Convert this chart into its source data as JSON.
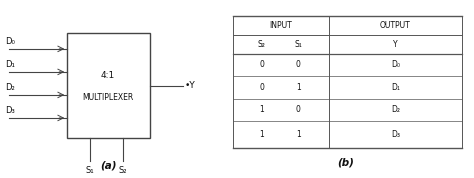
{
  "bg_color": "#ffffff",
  "mux_label_line1": "4:1",
  "mux_label_line2": "MULTIPLEXER",
  "inputs": [
    "D₀",
    "D₁",
    "D₂",
    "D₃"
  ],
  "sel_labels": [
    "S₁",
    "S₂"
  ],
  "output_label": "•Y",
  "caption_a": "(a)",
  "caption_b": "(b)",
  "table_header_input": "INPUT",
  "table_header_output": "OUTPUT",
  "table_col1": "S₂",
  "table_col2": "S₁",
  "table_col3": "Y",
  "table_rows": [
    [
      "0",
      "0",
      "D₀"
    ],
    [
      "0",
      "1",
      "D₁"
    ],
    [
      "1",
      "0",
      "D₂"
    ],
    [
      "1",
      "1",
      "D₃"
    ]
  ],
  "font_color": "#111111",
  "line_color": "#444444",
  "table_line_color": "#555555",
  "box_edge_color": "#444444"
}
